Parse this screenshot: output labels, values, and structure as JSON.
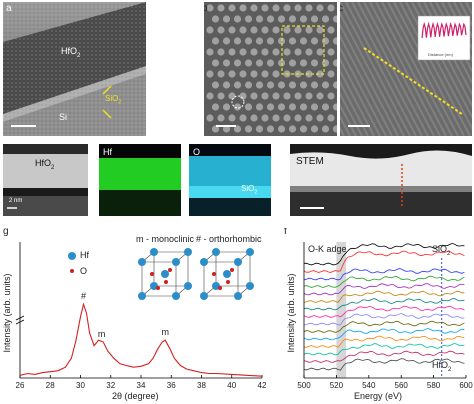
{
  "panels": {
    "a": {
      "label": "a",
      "hfo2": "HfO",
      "hfo2_sub": "2",
      "sio2": "SiO",
      "sio2_sub": "2",
      "si": "Si"
    },
    "b": {
      "label": "b"
    },
    "c": {
      "label": "c",
      "inset_caption": "Distance (nm)"
    },
    "d": {
      "label": "d",
      "hfo2": "HfO",
      "hfo2_sub": "2",
      "scale": "2 nm",
      "hf": "Hf",
      "o": "O",
      "sio2": "SiO",
      "sio2_sub": "2"
    },
    "e": {
      "label": "e",
      "stem": "STEM"
    },
    "g": {
      "label": "g",
      "legend_hf": "Hf",
      "legend_o": "O",
      "mono": "m - monoclinic",
      "ortho": "# - orthorhombic"
    },
    "f": {
      "label": "f",
      "adge": "O-K adge",
      "sio2": "SiO",
      "sio2_sub": "2",
      "hfo2": "HfO",
      "hfo2_sub": "2"
    }
  },
  "colors": {
    "xrd_line": "#d42020",
    "hf_map": "#22dd22",
    "o_map": "#22cce8",
    "atom_hf": "#2c8ec8",
    "atom_o": "#d02020"
  },
  "chart_data": [
    {
      "type": "line",
      "panel": "g",
      "xlabel": "2θ (degree)",
      "ylabel": "Intensity (arb. units)",
      "xlim": [
        26,
        42
      ],
      "xticks": [
        26,
        28,
        30,
        32,
        34,
        36,
        38,
        40,
        42
      ],
      "x": [
        26.0,
        26.5,
        27.0,
        27.5,
        28.0,
        28.5,
        29.0,
        29.4,
        29.7,
        30.0,
        30.2,
        30.4,
        30.6,
        30.9,
        31.2,
        31.5,
        31.8,
        32.2,
        32.6,
        33.0,
        33.5,
        34.0,
        34.5,
        34.8,
        35.1,
        35.4,
        35.6,
        35.9,
        36.2,
        36.6,
        37.0,
        37.5,
        38.0,
        38.5,
        39.0,
        40.0,
        41.0,
        42.0
      ],
      "y": [
        0.03,
        0.05,
        0.04,
        0.06,
        0.07,
        0.08,
        0.12,
        0.22,
        0.42,
        0.68,
        0.82,
        0.72,
        0.5,
        0.36,
        0.42,
        0.4,
        0.3,
        0.22,
        0.16,
        0.14,
        0.12,
        0.13,
        0.16,
        0.22,
        0.32,
        0.4,
        0.42,
        0.33,
        0.22,
        0.14,
        0.1,
        0.08,
        0.06,
        0.05,
        0.05,
        0.04,
        0.03,
        0.02
      ],
      "annotations": [
        {
          "x": 30.2,
          "text": "#"
        },
        {
          "x": 31.4,
          "text": "m"
        },
        {
          "x": 35.6,
          "text": "m"
        }
      ]
    },
    {
      "type": "line",
      "panel": "f",
      "xlabel": "Energy (eV)",
      "ylabel": "Intensity (arb. units)",
      "xlim": [
        500,
        600
      ],
      "xticks": [
        500,
        520,
        540,
        560,
        580,
        600
      ],
      "highlight_band": [
        520,
        526
      ],
      "reference_line": 585,
      "series_colors": [
        "#000000",
        "#ff2020",
        "#2030ff",
        "#20a020",
        "#a020c0",
        "#c08000",
        "#008080",
        "#ff20a0",
        "#8080ff",
        "#606000",
        "#00a0ff",
        "#ff8000",
        "#00c0a0",
        "#c02060",
        "#404040"
      ]
    }
  ]
}
